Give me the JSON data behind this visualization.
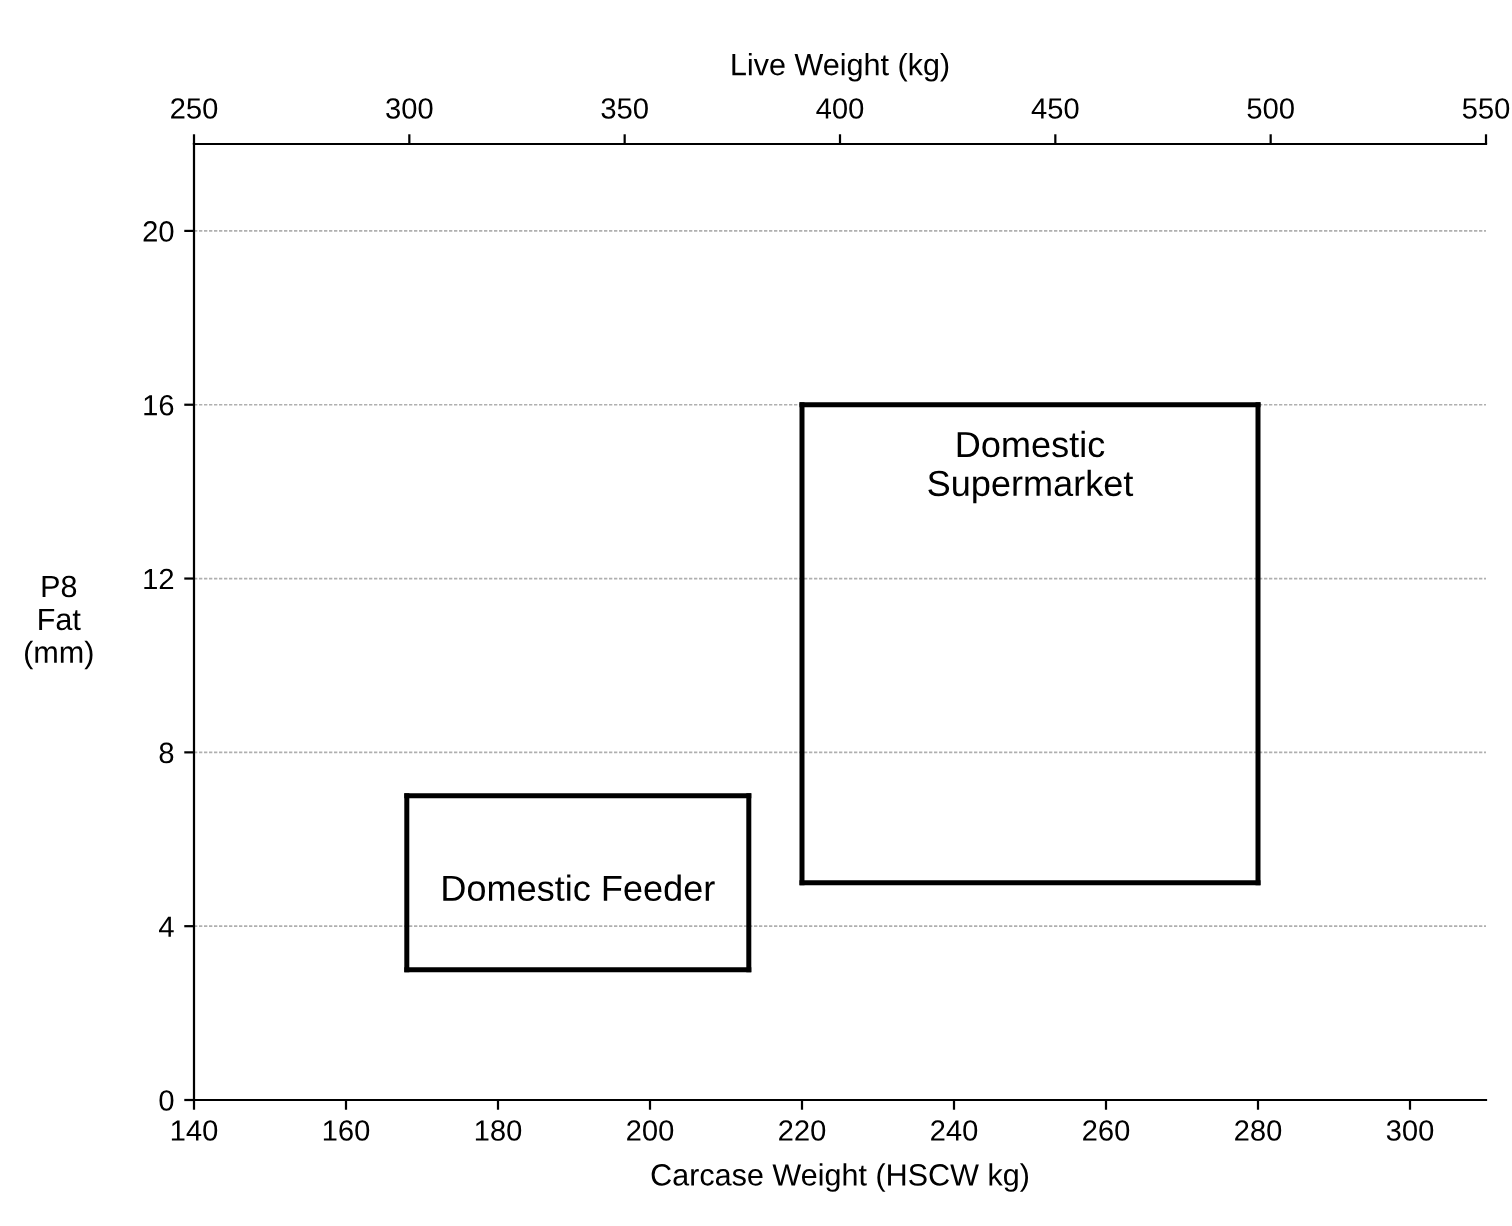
{
  "chart_data": {
    "type": "line",
    "xlabel": "Carcase Weight (HSCW kg)",
    "x2label": "Live Weight (kg)",
    "ylabel": "P8\nFat\n(mm)",
    "xlim": [
      140,
      310
    ],
    "xticks": [
      140,
      160,
      180,
      200,
      220,
      240,
      260,
      280,
      300
    ],
    "x2lim": [
      250,
      550
    ],
    "x2ticks": [
      250,
      300,
      350,
      400,
      450,
      500,
      550
    ],
    "ylim": [
      0,
      22
    ],
    "yticks": [
      0,
      4,
      8,
      12,
      16,
      20
    ],
    "grid": "y",
    "legend": false,
    "marker": "none",
    "line_style": "solid",
    "series": [
      {
        "color": "#000000",
        "x": [
          168,
          213
        ],
        "values": [
          3,
          3
        ]
      },
      {
        "color": "#000000",
        "x": [
          220,
          280
        ],
        "values": [
          5,
          5
        ]
      },
      {
        "color": "#000000",
        "x": [
          168,
          213
        ],
        "values": [
          7,
          7
        ]
      },
      {
        "color": "#000000",
        "x": [
          220,
          280
        ],
        "values": [
          16,
          16
        ]
      },
      {
        "color": "#000000",
        "x": [
          168,
          168
        ],
        "values": [
          3,
          7
        ]
      },
      {
        "color": "#000000",
        "x": [
          213,
          213
        ],
        "values": [
          3,
          7
        ]
      },
      {
        "color": "#000000",
        "x": [
          220,
          220
        ],
        "values": [
          5,
          16
        ]
      },
      {
        "color": "#000000",
        "x": [
          280,
          280
        ],
        "values": [
          5,
          16
        ]
      }
    ],
    "annotations": [
      "Domestic Feeder",
      "Domestic\nSupermarket"
    ]
  }
}
